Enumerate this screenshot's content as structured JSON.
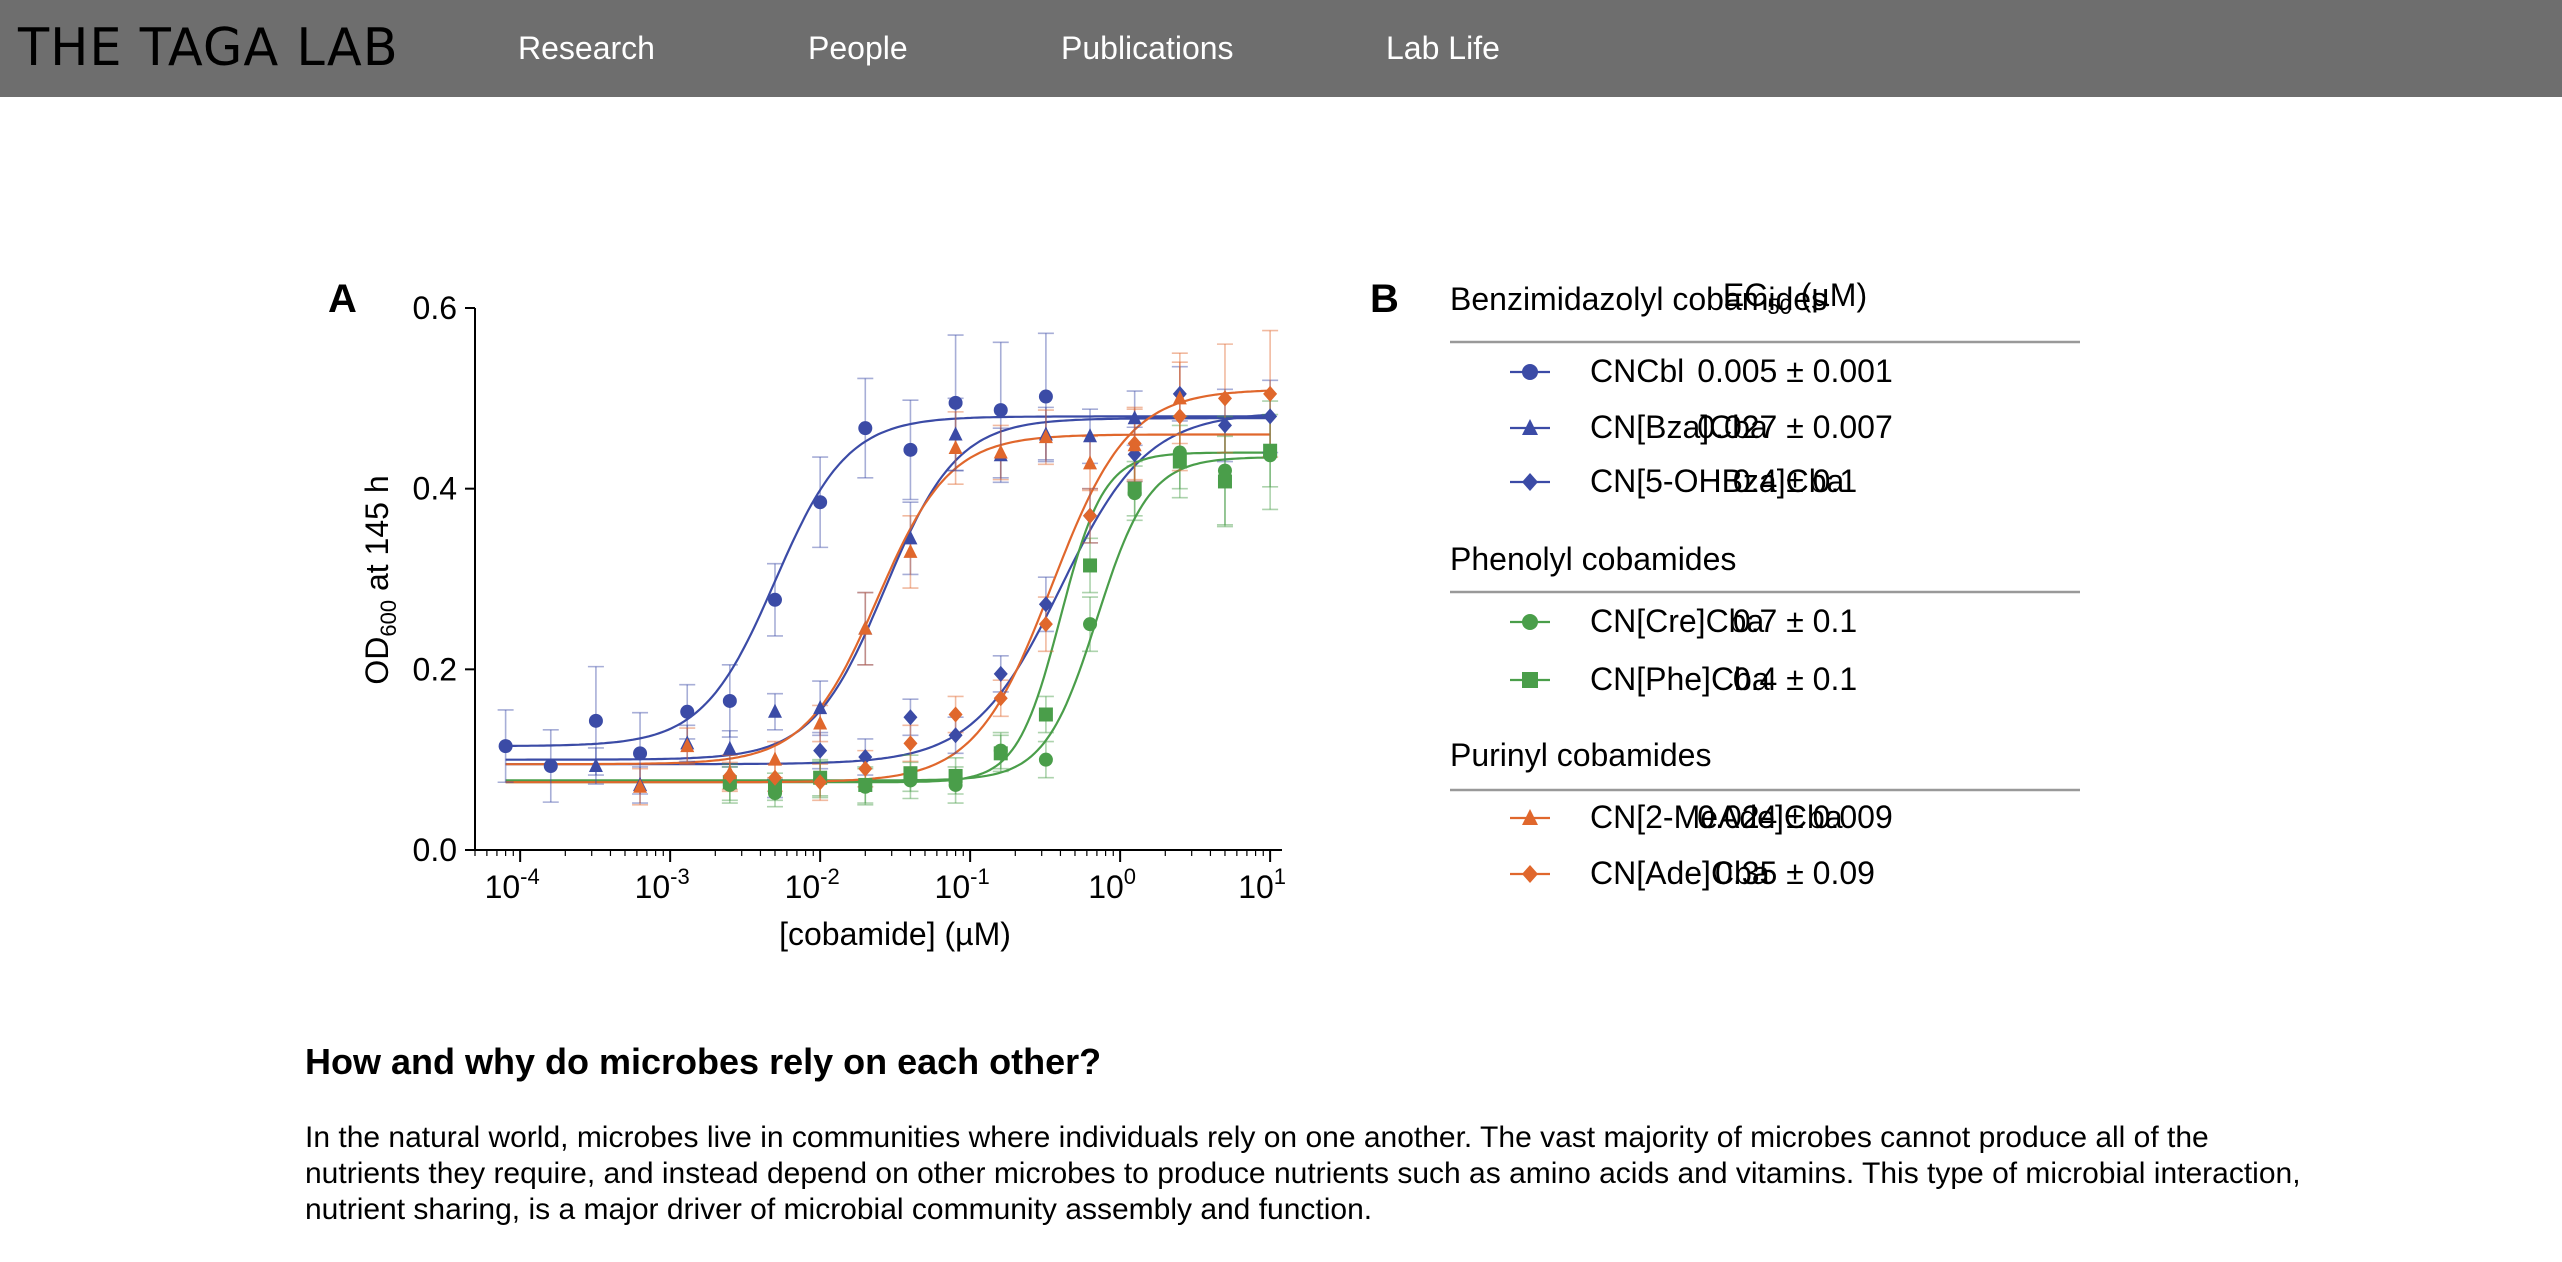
{
  "site": {
    "brand": "THE TAGA LAB",
    "nav": [
      "Research",
      "People",
      "Publications",
      "Lab Life"
    ]
  },
  "figure": {
    "panel_a_label": "A",
    "panel_b_label": "B",
    "table": {
      "header_left": "Benzimidazolyl cobamides",
      "header_right_main": "EC",
      "header_right_sub": "50",
      "header_right_unit": " (µM)",
      "groups": [
        {
          "title": "Benzimidazolyl cobamides",
          "rows": [
            {
              "name": "CNCbl",
              "value": "0.005 ± 0.001",
              "color": "#3b4ba6",
              "marker": "circle"
            },
            {
              "name": "CN[Bza]Cba",
              "value": "0.027 ± 0.007",
              "color": "#3b4ba6",
              "marker": "triangle"
            },
            {
              "name": "CN[5-OHBza]Cba",
              "value": "0.4 ± 0.1",
              "color": "#3b4ba6",
              "marker": "diamond"
            }
          ]
        },
        {
          "title": "Phenolyl cobamides",
          "rows": [
            {
              "name": "CN[Cre]Cba",
              "value": "0.7 ± 0.1",
              "color": "#4a9e4a",
              "marker": "circle"
            },
            {
              "name": "CN[Phe]Cba",
              "value": "0.4 ± 0.1",
              "color": "#4a9e4a",
              "marker": "square"
            }
          ]
        },
        {
          "title": "Purinyl cobamides",
          "rows": [
            {
              "name": "CN[2-MeAde]Cba",
              "value": "0.024 ± 0.009",
              "color": "#e0672c",
              "marker": "triangle"
            },
            {
              "name": "CN[Ade]Cba",
              "value": "0.35 ± 0.09",
              "color": "#e0672c",
              "marker": "diamond"
            }
          ]
        }
      ]
    }
  },
  "chart_data": {
    "type": "scatter",
    "xlabel": "[cobamide] (µM)",
    "ylabel_main": "OD",
    "ylabel_sub": "600",
    "ylabel_rest": " at 145 h",
    "x_scale": "log",
    "xlim": [
      5e-05,
      12
    ],
    "ylim": [
      0,
      0.6
    ],
    "yticks": [
      "0.0",
      "0.2",
      "0.4",
      "0.6"
    ],
    "xtick_exponents": [
      "-4",
      "-3",
      "-2",
      "-1",
      "0",
      "1"
    ],
    "series": [
      {
        "name": "CNCbl",
        "color": "#3b4ba6",
        "marker": "circle",
        "bottom": 0.115,
        "top": 0.48,
        "ec50": 0.005,
        "hill": 1.8,
        "x": [
          8e-05,
          0.00016,
          0.00032,
          0.00063,
          0.0013,
          0.0025,
          0.005,
          0.01,
          0.02,
          0.04,
          0.08,
          0.16,
          0.32
        ],
        "y": [
          0.115,
          0.093,
          0.143,
          0.107,
          0.153,
          0.165,
          0.277,
          0.385,
          0.467,
          0.443,
          0.495,
          0.487,
          0.502
        ],
        "err": [
          0.04,
          0.04,
          0.06,
          0.045,
          0.03,
          0.04,
          0.04,
          0.05,
          0.055,
          0.055,
          0.075,
          0.075,
          0.07
        ]
      },
      {
        "name": "CN[Bza]Cba",
        "color": "#3b4ba6",
        "marker": "triangle",
        "bottom": 0.1,
        "top": 0.478,
        "ec50": 0.027,
        "hill": 1.8,
        "x": [
          0.00032,
          0.00063,
          0.0013,
          0.0025,
          0.005,
          0.01,
          0.02,
          0.04,
          0.08,
          0.16,
          0.32,
          0.63,
          1.25
        ],
        "y": [
          0.093,
          0.072,
          0.118,
          0.112,
          0.153,
          0.157,
          0.245,
          0.345,
          0.46,
          0.437,
          0.46,
          0.458,
          0.478
        ],
        "err": [
          0.02,
          0.02,
          0.02,
          0.02,
          0.02,
          0.03,
          0.04,
          0.04,
          0.04,
          0.03,
          0.03,
          0.03,
          0.03
        ]
      },
      {
        "name": "CN[5-OHBza]Cba",
        "color": "#3b4ba6",
        "marker": "diamond",
        "bottom": 0.095,
        "top": 0.485,
        "ec50": 0.4,
        "hill": 1.5,
        "x": [
          0.005,
          0.01,
          0.02,
          0.04,
          0.08,
          0.16,
          0.32,
          0.63,
          1.25,
          2.5,
          5,
          10
        ],
        "y": [
          0.068,
          0.11,
          0.103,
          0.147,
          0.127,
          0.195,
          0.272,
          0.37,
          0.438,
          0.505,
          0.47,
          0.48
        ],
        "err": [
          0.01,
          0.02,
          0.02,
          0.02,
          0.02,
          0.02,
          0.03,
          0.03,
          0.03,
          0.03,
          0.04,
          0.04
        ]
      },
      {
        "name": "CN[Cre]Cba",
        "color": "#4a9e4a",
        "marker": "circle",
        "bottom": 0.077,
        "top": 0.435,
        "ec50": 0.7,
        "hill": 2.5,
        "x": [
          0.0025,
          0.005,
          0.01,
          0.02,
          0.04,
          0.08,
          0.16,
          0.32,
          0.63,
          1.25,
          2.5,
          5,
          10
        ],
        "y": [
          0.072,
          0.063,
          0.078,
          0.07,
          0.077,
          0.072,
          0.11,
          0.1,
          0.25,
          0.395,
          0.44,
          0.42,
          0.437
        ],
        "err": [
          0.02,
          0.015,
          0.02,
          0.02,
          0.02,
          0.02,
          0.02,
          0.02,
          0.03,
          0.03,
          0.04,
          0.06,
          0.06
        ]
      },
      {
        "name": "CN[Phe]Cba",
        "color": "#4a9e4a",
        "marker": "square",
        "bottom": 0.075,
        "top": 0.44,
        "ec50": 0.4,
        "hill": 3,
        "x": [
          0.0025,
          0.005,
          0.01,
          0.02,
          0.04,
          0.08,
          0.16,
          0.32,
          0.63,
          1.25,
          2.5,
          5,
          10
        ],
        "y": [
          0.075,
          0.07,
          0.08,
          0.072,
          0.085,
          0.082,
          0.107,
          0.15,
          0.315,
          0.4,
          0.43,
          0.408,
          0.442
        ],
        "err": [
          0.02,
          0.015,
          0.02,
          0.02,
          0.02,
          0.02,
          0.02,
          0.02,
          0.03,
          0.03,
          0.04,
          0.05,
          0.04
        ]
      },
      {
        "name": "CN[2-MeAde]Cba",
        "color": "#e0672c",
        "marker": "triangle",
        "bottom": 0.095,
        "top": 0.46,
        "ec50": 0.024,
        "hill": 1.8,
        "x": [
          0.00063,
          0.0013,
          0.0025,
          0.005,
          0.01,
          0.02,
          0.04,
          0.08,
          0.16,
          0.32,
          0.63,
          1.25,
          2.5
        ],
        "y": [
          0.07,
          0.115,
          0.085,
          0.1,
          0.14,
          0.245,
          0.33,
          0.445,
          0.44,
          0.457,
          0.428,
          0.448,
          0.5
        ],
        "err": [
          0.02,
          0.02,
          0.02,
          0.02,
          0.02,
          0.04,
          0.04,
          0.04,
          0.03,
          0.03,
          0.03,
          0.04,
          0.05
        ]
      },
      {
        "name": "CN[Ade]Cba",
        "color": "#e0672c",
        "marker": "diamond",
        "bottom": 0.075,
        "top": 0.51,
        "ec50": 0.35,
        "hill": 1.7,
        "x": [
          0.0025,
          0.005,
          0.01,
          0.02,
          0.04,
          0.08,
          0.16,
          0.32,
          0.63,
          1.25,
          2.5,
          5,
          10
        ],
        "y": [
          0.082,
          0.08,
          0.075,
          0.09,
          0.118,
          0.15,
          0.168,
          0.25,
          0.37,
          0.45,
          0.48,
          0.5,
          0.505
        ],
        "err": [
          0.015,
          0.015,
          0.02,
          0.02,
          0.02,
          0.02,
          0.02,
          0.03,
          0.03,
          0.04,
          0.06,
          0.06,
          0.07
        ]
      }
    ]
  },
  "article": {
    "heading": "How and why do microbes rely on each other?",
    "paragraph": "In the natural world, microbes live in communities where individuals rely on one another. The vast majority of microbes cannot produce all of the nutrients they require, and instead depend on other microbes to produce nutrients such as amino acids and vitamins. This type of microbial interaction, nutrient sharing, is a major driver of microbial community assembly and function."
  }
}
